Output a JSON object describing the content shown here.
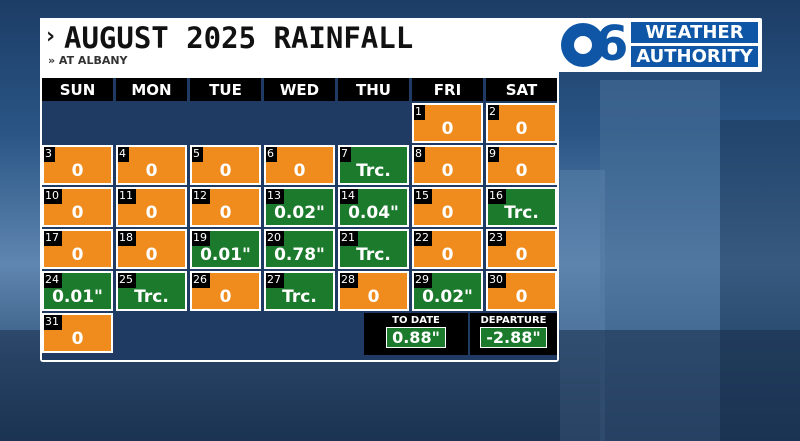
{
  "header": {
    "title": "AUGUST 2025 RAINFALL",
    "subtitle": "» AT ALBANY"
  },
  "logo": {
    "number": "6",
    "line1": "WEATHER",
    "line2": "AUTHORITY"
  },
  "colors": {
    "orange": "#f08c1e",
    "green": "#1c7a2c",
    "header_bg": "#000000"
  },
  "calendar": {
    "weekdays": [
      "SUN",
      "MON",
      "TUE",
      "WED",
      "THU",
      "FRI",
      "SAT"
    ],
    "weeks": [
      [
        null,
        null,
        null,
        null,
        null,
        {
          "day": "1",
          "value": "0",
          "status": "dry"
        },
        {
          "day": "2",
          "value": "0",
          "status": "dry"
        }
      ],
      [
        {
          "day": "3",
          "value": "0",
          "status": "dry"
        },
        {
          "day": "4",
          "value": "0",
          "status": "dry"
        },
        {
          "day": "5",
          "value": "0",
          "status": "dry"
        },
        {
          "day": "6",
          "value": "0",
          "status": "dry"
        },
        {
          "day": "7",
          "value": "Trc.",
          "status": "wet"
        },
        {
          "day": "8",
          "value": "0",
          "status": "dry"
        },
        {
          "day": "9",
          "value": "0",
          "status": "dry"
        }
      ],
      [
        {
          "day": "10",
          "value": "0",
          "status": "dry"
        },
        {
          "day": "11",
          "value": "0",
          "status": "dry"
        },
        {
          "day": "12",
          "value": "0",
          "status": "dry"
        },
        {
          "day": "13",
          "value": "0.02\"",
          "status": "wet"
        },
        {
          "day": "14",
          "value": "0.04\"",
          "status": "wet"
        },
        {
          "day": "15",
          "value": "0",
          "status": "dry"
        },
        {
          "day": "16",
          "value": "Trc.",
          "status": "wet"
        }
      ],
      [
        {
          "day": "17",
          "value": "0",
          "status": "dry"
        },
        {
          "day": "18",
          "value": "0",
          "status": "dry"
        },
        {
          "day": "19",
          "value": "0.01\"",
          "status": "wet"
        },
        {
          "day": "20",
          "value": "0.78\"",
          "status": "wet"
        },
        {
          "day": "21",
          "value": "Trc.",
          "status": "wet"
        },
        {
          "day": "22",
          "value": "0",
          "status": "dry"
        },
        {
          "day": "23",
          "value": "0",
          "status": "dry"
        }
      ],
      [
        {
          "day": "24",
          "value": "0.01\"",
          "status": "wet"
        },
        {
          "day": "25",
          "value": "Trc.",
          "status": "wet"
        },
        {
          "day": "26",
          "value": "0",
          "status": "dry"
        },
        {
          "day": "27",
          "value": "Trc.",
          "status": "wet"
        },
        {
          "day": "28",
          "value": "0",
          "status": "dry"
        },
        {
          "day": "29",
          "value": "0.02\"",
          "status": "wet"
        },
        {
          "day": "30",
          "value": "0",
          "status": "dry"
        }
      ],
      [
        {
          "day": "31",
          "value": "0",
          "status": "dry"
        },
        null,
        null,
        null,
        null,
        null,
        null
      ]
    ]
  },
  "summary": {
    "to_date": {
      "label": "TO DATE",
      "value": "0.88\""
    },
    "departure": {
      "label": "DEPARTURE",
      "value": "-2.88\""
    }
  }
}
